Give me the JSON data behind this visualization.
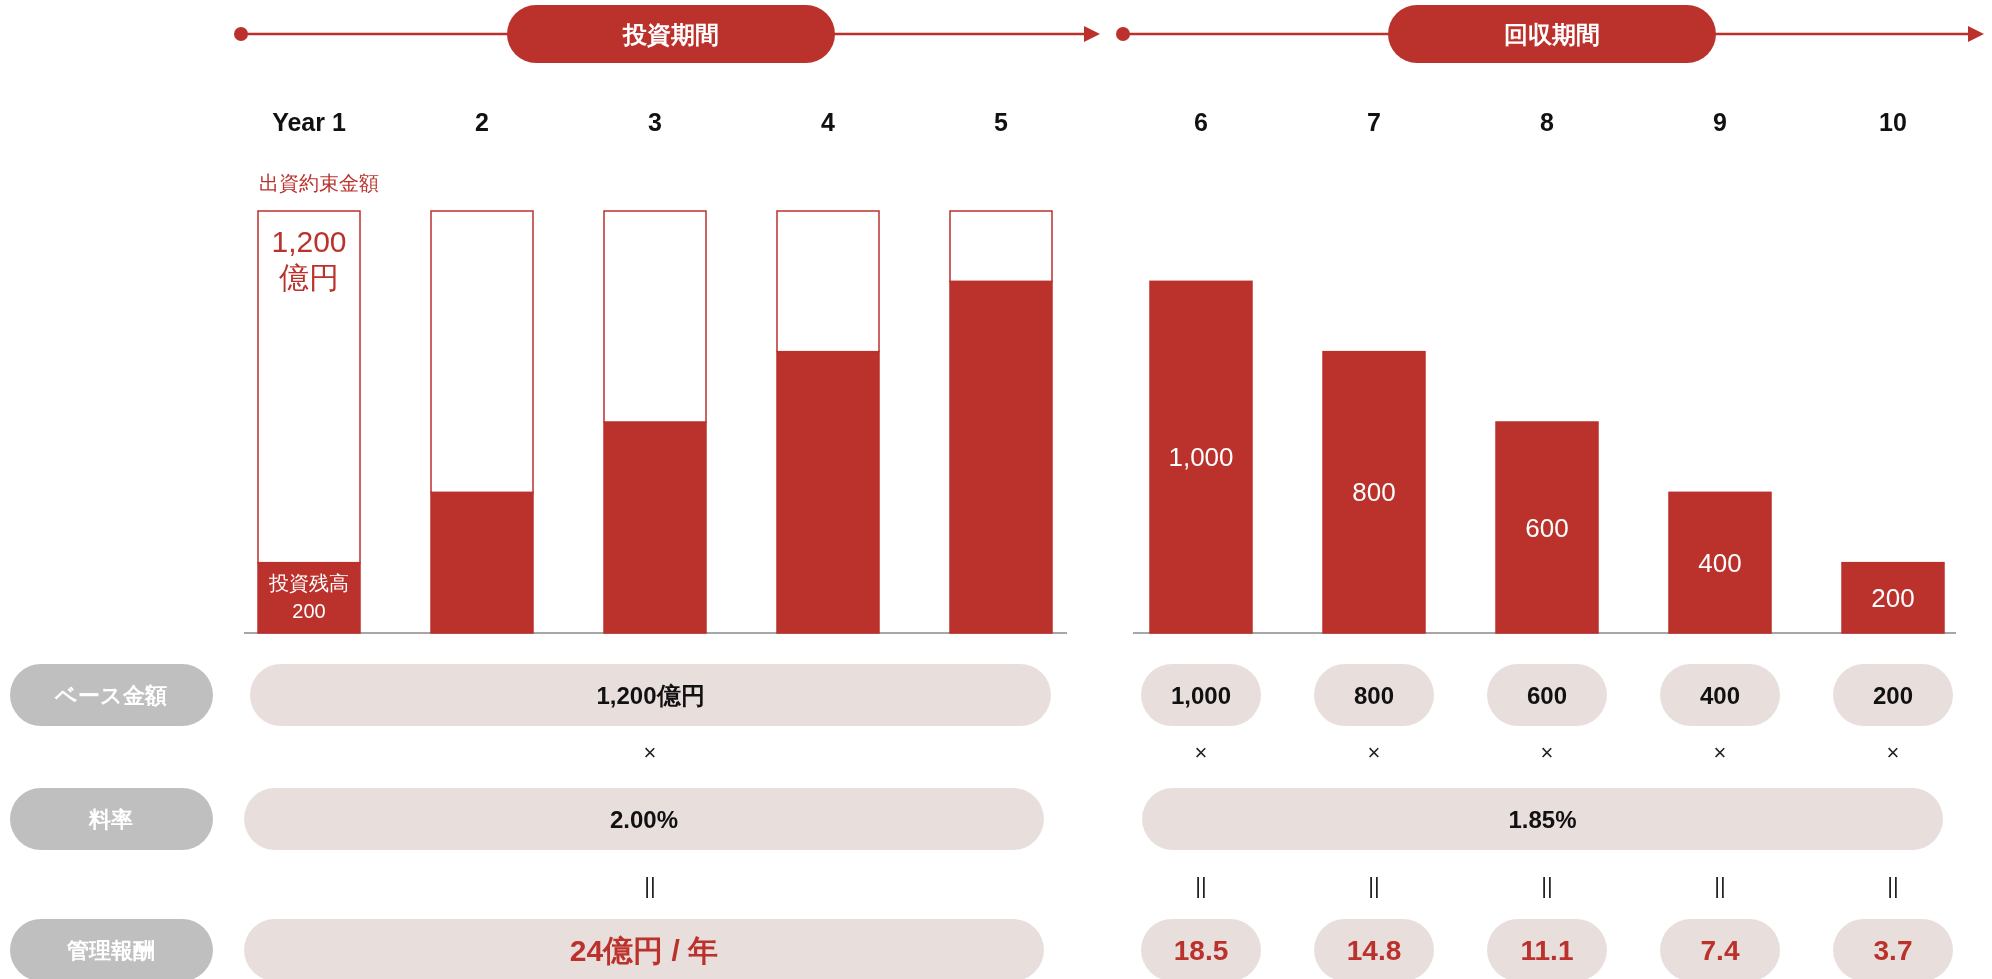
{
  "chart_data": {
    "type": "bar",
    "stacked": true,
    "categories": [
      "Year 1",
      "2",
      "3",
      "4",
      "5",
      "6",
      "7",
      "8",
      "9",
      "10"
    ],
    "series": [
      {
        "name": "投資残高",
        "color": "#bb312c",
        "values": [
          200,
          400,
          600,
          800,
          1000,
          1000,
          800,
          600,
          400,
          200
        ],
        "value_labels": [
          "200",
          null,
          null,
          null,
          null,
          "1,000",
          "800",
          "600",
          "400",
          "200"
        ]
      },
      {
        "name": "出資約束金額",
        "color": "#ffffff",
        "values": [
          1000,
          800,
          600,
          400,
          200,
          null,
          null,
          null,
          null,
          null
        ]
      }
    ],
    "totals": [
      "1,200\n億円",
      null,
      null,
      null,
      null,
      null,
      null,
      null,
      null,
      null
    ],
    "annotations": [
      "投資期間",
      "回収期間",
      "ベース金額",
      "1,200億円",
      "1,000",
      "800",
      "600",
      "400",
      "200",
      "×",
      "×",
      "×",
      "×",
      "×",
      "×",
      "料率",
      "2.00%",
      "1.85%",
      "||",
      "||",
      "||",
      "||",
      "||",
      "||",
      "管理報酬",
      "24億円 / 年",
      "18.5",
      "14.8",
      "11.1",
      "7.4",
      "3.7"
    ]
  }
}
